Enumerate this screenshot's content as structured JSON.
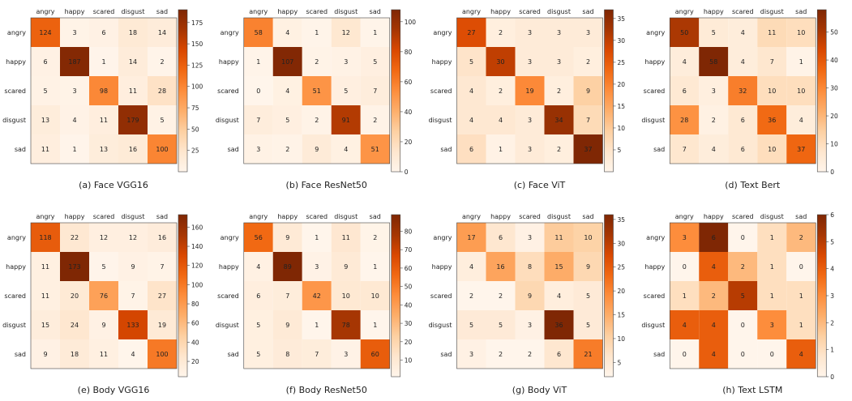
{
  "chart_data": [
    {
      "type": "heatmap",
      "caption": "(a) Face VGG16",
      "categories": [
        "angry",
        "happy",
        "scared",
        "disgust",
        "sad"
      ],
      "matrix": [
        [
          124,
          3,
          6,
          18,
          14
        ],
        [
          6,
          187,
          1,
          14,
          2
        ],
        [
          5,
          3,
          98,
          11,
          28
        ],
        [
          13,
          4,
          11,
          179,
          5
        ],
        [
          11,
          1,
          13,
          16,
          100
        ]
      ],
      "colorbar": {
        "min": 0,
        "max": 190,
        "ticks": [
          25,
          50,
          75,
          100,
          125,
          150,
          175
        ]
      }
    },
    {
      "type": "heatmap",
      "caption": "(b) Face ResNet50",
      "categories": [
        "angry",
        "happy",
        "scared",
        "disgust",
        "sad"
      ],
      "matrix": [
        [
          58,
          4,
          1,
          12,
          1
        ],
        [
          1,
          107,
          2,
          3,
          5
        ],
        [
          0,
          4,
          51,
          5,
          7
        ],
        [
          7,
          5,
          2,
          91,
          2
        ],
        [
          3,
          2,
          9,
          4,
          51
        ]
      ],
      "colorbar": {
        "min": 0,
        "max": 108,
        "ticks": [
          0,
          20,
          40,
          60,
          80,
          100
        ]
      }
    },
    {
      "type": "heatmap",
      "caption": "(c) Face ViT",
      "categories": [
        "angry",
        "happy",
        "scared",
        "disgust",
        "sad"
      ],
      "matrix": [
        [
          27,
          2,
          3,
          3,
          3
        ],
        [
          5,
          30,
          3,
          3,
          2
        ],
        [
          4,
          2,
          19,
          2,
          9
        ],
        [
          4,
          4,
          3,
          34,
          7
        ],
        [
          6,
          1,
          3,
          2,
          37
        ]
      ],
      "colorbar": {
        "min": 0,
        "max": 37,
        "ticks": [
          5,
          10,
          15,
          20,
          25,
          30,
          35
        ]
      }
    },
    {
      "type": "heatmap",
      "caption": "(d) Text Bert",
      "categories": [
        "angry",
        "happy",
        "scared",
        "disgust",
        "sad"
      ],
      "matrix": [
        [
          50,
          5,
          4,
          11,
          10
        ],
        [
          4,
          58,
          4,
          7,
          1
        ],
        [
          6,
          3,
          32,
          10,
          10
        ],
        [
          28,
          2,
          6,
          36,
          4
        ],
        [
          7,
          4,
          6,
          10,
          37
        ]
      ],
      "colorbar": {
        "min": 0,
        "max": 58,
        "ticks": [
          0,
          10,
          20,
          30,
          40,
          50
        ]
      }
    },
    {
      "type": "heatmap",
      "caption": "(e) Body VGG16",
      "categories": [
        "angry",
        "happy",
        "scared",
        "disgust",
        "sad"
      ],
      "matrix": [
        [
          118,
          22,
          12,
          12,
          16
        ],
        [
          11,
          173,
          5,
          9,
          7
        ],
        [
          11,
          20,
          76,
          7,
          27
        ],
        [
          15,
          24,
          9,
          133,
          19
        ],
        [
          9,
          18,
          11,
          4,
          100
        ]
      ],
      "colorbar": {
        "min": 4,
        "max": 173,
        "ticks": [
          20,
          40,
          60,
          80,
          100,
          120,
          140,
          160
        ]
      }
    },
    {
      "type": "heatmap",
      "caption": "(f) Body ResNet50",
      "categories": [
        "angry",
        "happy",
        "scared",
        "disgust",
        "sad"
      ],
      "matrix": [
        [
          56,
          9,
          1,
          11,
          2
        ],
        [
          4,
          89,
          3,
          9,
          1
        ],
        [
          6,
          7,
          42,
          10,
          10
        ],
        [
          5,
          9,
          1,
          78,
          1
        ],
        [
          5,
          8,
          7,
          3,
          60
        ]
      ],
      "colorbar": {
        "min": 1,
        "max": 89,
        "ticks": [
          10,
          20,
          30,
          40,
          50,
          60,
          70,
          80
        ]
      }
    },
    {
      "type": "heatmap",
      "caption": "(g) Body ViT",
      "categories": [
        "angry",
        "happy",
        "scared",
        "disgust",
        "sad"
      ],
      "matrix": [
        [
          17,
          6,
          3,
          11,
          10
        ],
        [
          4,
          16,
          8,
          15,
          9
        ],
        [
          2,
          2,
          9,
          4,
          5
        ],
        [
          5,
          5,
          3,
          36,
          5
        ],
        [
          3,
          2,
          2,
          6,
          21
        ]
      ],
      "colorbar": {
        "min": 2,
        "max": 36,
        "ticks": [
          5,
          10,
          15,
          20,
          25,
          30,
          35
        ]
      }
    },
    {
      "type": "heatmap",
      "caption": "(h) Text LSTM",
      "categories": [
        "angry",
        "happy",
        "scared",
        "disgust",
        "sad"
      ],
      "matrix": [
        [
          3,
          6,
          0,
          1,
          2
        ],
        [
          0,
          4,
          2,
          1,
          0
        ],
        [
          1,
          2,
          5,
          1,
          1
        ],
        [
          4,
          4,
          0,
          3,
          1
        ],
        [
          0,
          4,
          0,
          0,
          4
        ]
      ],
      "colorbar": {
        "min": 0,
        "max": 6,
        "ticks": [
          0,
          1,
          2,
          3,
          4,
          5,
          6
        ]
      }
    }
  ],
  "colormap": {
    "low": "#fff5eb",
    "high": "#7f2704",
    "name": "Oranges"
  }
}
